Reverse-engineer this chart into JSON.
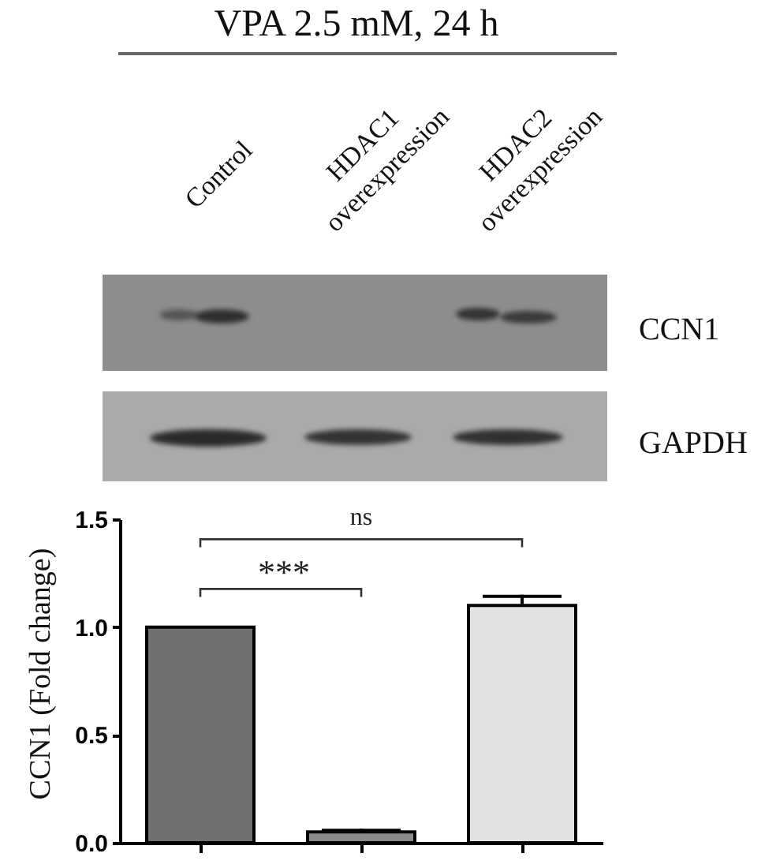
{
  "chart_data": {
    "type": "bar",
    "title": "VPA 2.5 mM, 24 h",
    "ylabel": "CCN1 (Fold change)",
    "categories": [
      null,
      null,
      null
    ],
    "values": [
      1.0,
      0.05,
      1.1
    ],
    "errors": [
      null,
      [
        0.05,
        0.065
      ],
      [
        1.1,
        1.15
      ]
    ],
    "colors": [
      "#707070",
      "#8a8a8a",
      "#e2e2e2"
    ],
    "ylim": [
      0,
      1.5
    ],
    "yticks": [
      {
        "value": 0,
        "label": "0.0"
      },
      0.5,
      {
        "value": 1,
        "label": "1.0"
      },
      1.5
    ],
    "annotations": [
      "Control",
      "HDAC1 overexpression",
      "HDAC2 overexpression",
      "CCN1",
      "GAPDH",
      "ns",
      "***"
    ]
  }
}
